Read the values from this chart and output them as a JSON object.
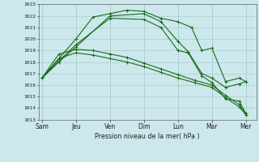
{
  "xlabel": "Pression niveau de la mer( hPa )",
  "x_labels": [
    "Sam",
    "Jeu",
    "Ven",
    "Dim",
    "Lun",
    "Mar",
    "Mer"
  ],
  "ylim": [
    1013,
    1023
  ],
  "yticks": [
    1013,
    1014,
    1015,
    1016,
    1017,
    1018,
    1019,
    1020,
    1021,
    1022,
    1023
  ],
  "background_color": "#cce8ec",
  "grid_color": "#aacccc",
  "line_color": "#1a6b1a",
  "line1_x": [
    0,
    1.0,
    1.5,
    2.0,
    2.5,
    3.0,
    3.5,
    4.0,
    4.4,
    4.7,
    5.0,
    5.4,
    5.8,
    6.0
  ],
  "line1_y": [
    1016.6,
    1020.0,
    1021.9,
    1022.2,
    1022.5,
    1022.4,
    1021.8,
    1021.5,
    1021.0,
    1019.0,
    1019.2,
    1016.3,
    1016.6,
    1016.3
  ],
  "line2_x": [
    0,
    0.5,
    1.0,
    1.5,
    2.0,
    2.5,
    3.0,
    3.5,
    4.0,
    4.5,
    5.0,
    5.4,
    5.8,
    6.0
  ],
  "line2_y": [
    1016.6,
    1018.7,
    1019.1,
    1019.0,
    1018.7,
    1018.4,
    1017.9,
    1017.4,
    1016.9,
    1016.4,
    1016.0,
    1015.1,
    1014.3,
    1013.5
  ],
  "line3_x": [
    0,
    0.5,
    1.0,
    1.5,
    2.0,
    2.5,
    3.0,
    3.5,
    4.0,
    4.5,
    5.0,
    5.4,
    5.8,
    6.0
  ],
  "line3_y": [
    1016.6,
    1018.3,
    1018.8,
    1018.6,
    1018.3,
    1018.0,
    1017.6,
    1017.1,
    1016.6,
    1016.2,
    1015.8,
    1014.9,
    1014.1,
    1013.4
  ],
  "line4_x": [
    0,
    0.5,
    1.0,
    2.0,
    3.0,
    3.5,
    4.0,
    4.3,
    4.7,
    5.0,
    5.4,
    5.8,
    6.0
  ],
  "line4_y": [
    1016.6,
    1018.0,
    1019.3,
    1022.0,
    1022.2,
    1021.5,
    1019.8,
    1018.9,
    1017.0,
    1016.6,
    1015.8,
    1016.1,
    1016.3
  ],
  "line5_x": [
    0,
    0.5,
    1.0,
    2.0,
    3.0,
    3.5,
    4.0,
    4.3,
    4.7,
    5.0,
    5.4,
    5.8,
    6.0
  ],
  "line5_y": [
    1016.6,
    1018.1,
    1019.5,
    1021.8,
    1021.7,
    1021.0,
    1019.0,
    1018.8,
    1016.8,
    1016.2,
    1014.8,
    1014.6,
    1013.5
  ]
}
